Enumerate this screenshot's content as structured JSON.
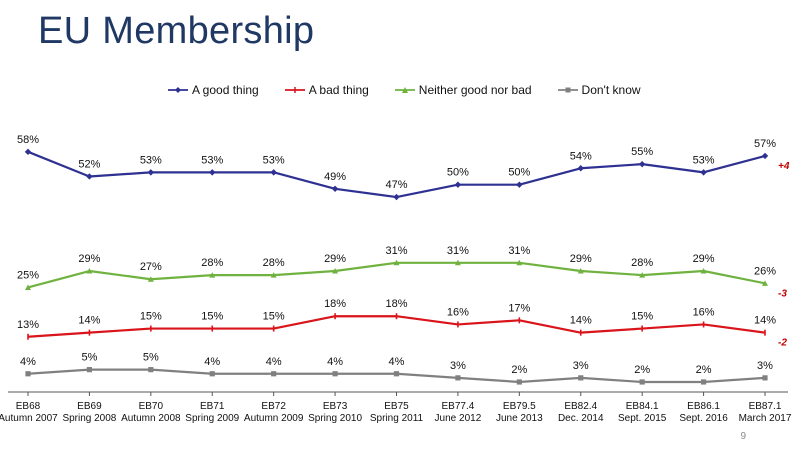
{
  "slide": {
    "title": "EU Membership",
    "page_number": "9"
  },
  "chart_data": {
    "type": "line",
    "title": "EU Membership",
    "xlabel": "",
    "ylabel": "",
    "ylim": [
      0,
      65
    ],
    "categories": [
      [
        "EB68",
        "Autumn 2007"
      ],
      [
        "EB69",
        "Spring 2008"
      ],
      [
        "EB70",
        "Autumn 2008"
      ],
      [
        "EB71",
        "Spring 2009"
      ],
      [
        "EB72",
        "Autumn 2009"
      ],
      [
        "EB73",
        "Spring 2010"
      ],
      [
        "EB75",
        "Spring 2011"
      ],
      [
        "EB77.4",
        "June 2012"
      ],
      [
        "EB79.5",
        "June  2013"
      ],
      [
        "EB82.4",
        "Dec. 2014"
      ],
      [
        "EB84.1",
        "Sept. 2015"
      ],
      [
        "EB86.1",
        "Sept. 2016"
      ],
      [
        "EB87.1",
        "March 2017"
      ]
    ],
    "legend_position": "top",
    "series": [
      {
        "name": "A good thing",
        "color": "#2e3192",
        "marker": "diamond",
        "values": [
          58,
          52,
          53,
          53,
          53,
          49,
          47,
          50,
          50,
          54,
          55,
          53,
          57
        ],
        "change": "+4"
      },
      {
        "name": "A bad thing",
        "color": "#d9141b",
        "marker": "dash",
        "values": [
          13,
          14,
          15,
          15,
          15,
          18,
          18,
          16,
          17,
          14,
          15,
          16,
          14
        ],
        "change": "-2"
      },
      {
        "name": "Neither good nor bad",
        "color": "#70b23f",
        "marker": "triangle",
        "values": [
          25,
          29,
          27,
          28,
          28,
          29,
          31,
          31,
          31,
          29,
          28,
          29,
          26
        ],
        "change": "-3"
      },
      {
        "name": "Don't know",
        "color": "#808080",
        "marker": "square",
        "values": [
          4,
          5,
          5,
          4,
          4,
          4,
          4,
          3,
          2,
          3,
          2,
          2,
          3
        ],
        "change": ""
      }
    ]
  }
}
